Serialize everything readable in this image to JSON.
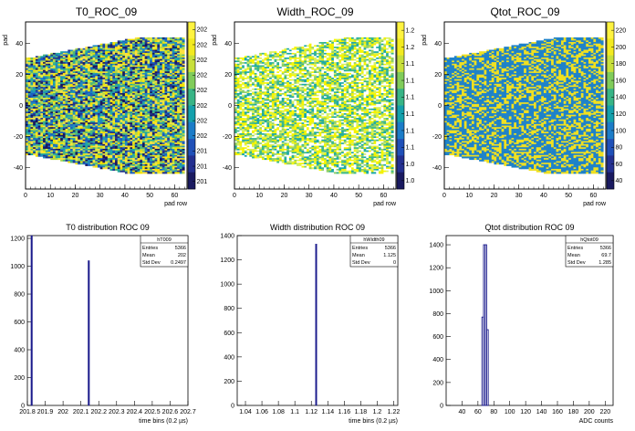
{
  "panels": [
    {
      "title": "T0_ROC_09",
      "ylabel": "pad",
      "xlabel": "pad row"
    },
    {
      "title": "Width_ROC_09",
      "ylabel": "pad",
      "xlabel": "pad row"
    },
    {
      "title": "Qtot_ROC_09",
      "ylabel": "pad",
      "xlabel": "pad row"
    },
    {
      "title": "T0 distribution ROC 09",
      "xlabel": "time bins (0.2 µs)",
      "stats": {
        "name": "hT009",
        "rows": [
          [
            "Entries",
            "5366"
          ],
          [
            "Mean",
            "202"
          ],
          [
            "Std Dev",
            "0.2497"
          ]
        ]
      }
    },
    {
      "title": "Width distribution ROC 09",
      "xlabel": "time bins (0.2 µs)",
      "stats": {
        "name": "hWidth09",
        "rows": [
          [
            "Entries",
            "5366"
          ],
          [
            "Mean",
            "1.125"
          ],
          [
            "Std Dev",
            "0"
          ]
        ]
      }
    },
    {
      "title": "Qtot distribution ROC 09",
      "xlabel": "ADC counts",
      "stats": {
        "name": "hQtot09",
        "rows": [
          [
            "Entries",
            "5366"
          ],
          [
            "Mean",
            "69.7"
          ],
          [
            "Std Dev",
            "1.285"
          ]
        ]
      }
    }
  ],
  "chart_data": [
    {
      "type": "heatmap",
      "title": "T0_ROC_09",
      "xlabel": "pad row",
      "ylabel": "pad",
      "xlim": [
        0,
        65
      ],
      "ylim": [
        -54,
        54
      ],
      "xticks": [
        0,
        10,
        20,
        30,
        40,
        50,
        60
      ],
      "yticks": [
        -40,
        -20,
        0,
        20,
        40
      ],
      "zticks": [
        "202",
        "202",
        "202",
        "202",
        "202",
        "202",
        "202",
        "202",
        "201",
        "201",
        "201"
      ]
    },
    {
      "type": "heatmap",
      "title": "Width_ROC_09",
      "xlabel": "pad row",
      "ylabel": "pad",
      "xlim": [
        0,
        65
      ],
      "ylim": [
        -54,
        54
      ],
      "xticks": [
        0,
        10,
        20,
        30,
        40,
        50,
        60
      ],
      "yticks": [
        -40,
        -20,
        0,
        20,
        40
      ],
      "zticks": [
        "1.2",
        "1.2",
        "1.1",
        "1.1",
        "1.1",
        "1.1",
        "1.1",
        "1.1",
        "1.0",
        "1.0"
      ]
    },
    {
      "type": "heatmap",
      "title": "Qtot_ROC_09",
      "xlabel": "pad row",
      "ylabel": "pad",
      "xlim": [
        0,
        65
      ],
      "ylim": [
        -54,
        54
      ],
      "xticks": [
        0,
        10,
        20,
        30,
        40,
        50,
        60
      ],
      "yticks": [
        -40,
        -20,
        0,
        20,
        40
      ],
      "zticks": [
        "220",
        "200",
        "180",
        "160",
        "140",
        "120",
        "100",
        "80",
        "60",
        "40"
      ]
    },
    {
      "type": "bar",
      "title": "T0 distribution ROC 09",
      "xlabel": "time bins (0.2 µs)",
      "xlim": [
        201.8,
        202.7
      ],
      "ylim": [
        0,
        1220
      ],
      "xticklabels": [
        "201.8",
        "201.9",
        "202",
        "202.1",
        "202.2",
        "202.3",
        "202.4",
        "202.5",
        "202.6",
        "202.7"
      ],
      "yticks": [
        0,
        200,
        400,
        600,
        800,
        1000,
        1200
      ],
      "bins": [
        {
          "x": 201.82,
          "value": 1220
        },
        {
          "x": 202.14,
          "value": 1040
        }
      ]
    },
    {
      "type": "bar",
      "title": "Width distribution ROC 09",
      "xlabel": "time bins (0.2 µs)",
      "xlim": [
        1.03,
        1.225
      ],
      "xticklabels": [
        "1.04",
        "1.06",
        "1.08",
        "1.1",
        "1.12",
        "1.14",
        "1.16",
        "1.18",
        "1.2",
        "1.22"
      ],
      "yticks": [
        0,
        200,
        400,
        600,
        800,
        1000,
        1200,
        1400
      ],
      "ylim": [
        0,
        1400
      ],
      "bins": [
        {
          "x": 1.125,
          "value": 1330
        }
      ]
    },
    {
      "type": "bar",
      "title": "Qtot distribution ROC 09",
      "xlabel": "ADC counts",
      "xlim": [
        20,
        230
      ],
      "xticklabels": [
        "40",
        "60",
        "80",
        "100",
        "120",
        "140",
        "160",
        "180",
        "200",
        "220"
      ],
      "yticks": [
        0,
        200,
        400,
        600,
        800,
        1000,
        1200,
        1400
      ],
      "ylim": [
        0,
        1480
      ],
      "bins": [
        {
          "x": 65,
          "value": 770
        },
        {
          "x": 67,
          "value": 1400
        },
        {
          "x": 69,
          "value": 1400
        },
        {
          "x": 71,
          "value": 660
        }
      ]
    }
  ]
}
